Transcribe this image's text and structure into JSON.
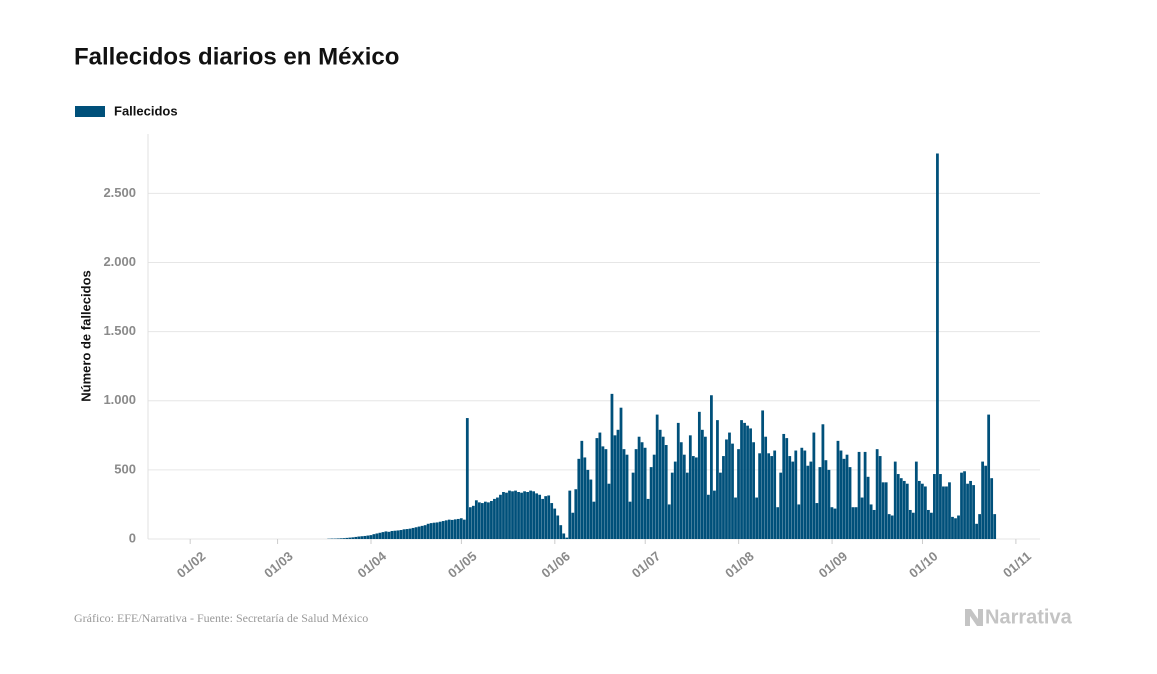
{
  "chart_data": {
    "type": "bar",
    "title": "Fallecidos diarios en México",
    "ylabel": "Número de fallecidos",
    "source": "Gráfico: EFE/Narrativa - Fuente: Secretaría de Salud México",
    "brand": "Narrativa",
    "legend": "top-left",
    "grid": true,
    "xlim": [
      18,
      314
    ],
    "xticks": [
      {
        "value": 32,
        "label": "01/02"
      },
      {
        "value": 61,
        "label": "01/03"
      },
      {
        "value": 92,
        "label": "01/04"
      },
      {
        "value": 122,
        "label": "01/05"
      },
      {
        "value": 153,
        "label": "01/06"
      },
      {
        "value": 183,
        "label": "01/07"
      },
      {
        "value": 214,
        "label": "01/08"
      },
      {
        "value": 245,
        "label": "01/09"
      },
      {
        "value": 275,
        "label": "01/10"
      },
      {
        "value": 306,
        "label": "01/11"
      }
    ],
    "ylim": [
      0,
      2930
    ],
    "yticks": [
      0,
      500,
      {
        "value": 1000,
        "label": "1.000"
      },
      {
        "value": 1500,
        "label": "1.500"
      },
      {
        "value": 2000,
        "label": "2.000"
      },
      {
        "value": 2500,
        "label": "2.500"
      }
    ],
    "x": [
      78,
      79,
      80,
      81,
      82,
      83,
      84,
      85,
      86,
      87,
      88,
      89,
      90,
      91,
      92,
      93,
      94,
      95,
      96,
      97,
      98,
      99,
      100,
      101,
      102,
      103,
      104,
      105,
      106,
      107,
      108,
      109,
      110,
      111,
      112,
      113,
      114,
      115,
      116,
      117,
      118,
      119,
      120,
      121,
      122,
      123,
      124,
      125,
      126,
      127,
      128,
      129,
      130,
      131,
      132,
      133,
      134,
      135,
      136,
      137,
      138,
      139,
      140,
      141,
      142,
      143,
      144,
      145,
      146,
      147,
      148,
      149,
      150,
      151,
      152,
      153,
      154,
      155,
      156,
      157,
      158,
      159,
      160,
      161,
      162,
      163,
      164,
      165,
      166,
      167,
      168,
      169,
      170,
      171,
      172,
      173,
      174,
      175,
      176,
      177,
      178,
      179,
      180,
      181,
      182,
      183,
      184,
      185,
      186,
      187,
      188,
      189,
      190,
      191,
      192,
      193,
      194,
      195,
      196,
      197,
      198,
      199,
      200,
      201,
      202,
      203,
      204,
      205,
      206,
      207,
      208,
      209,
      210,
      211,
      212,
      213,
      214,
      215,
      216,
      217,
      218,
      219,
      220,
      221,
      222,
      223,
      224,
      225,
      226,
      227,
      228,
      229,
      230,
      231,
      232,
      233,
      234,
      235,
      236,
      237,
      238,
      239,
      240,
      241,
      242,
      243,
      244,
      245,
      246,
      247,
      248,
      249,
      250,
      251,
      252,
      253,
      254,
      255,
      256,
      257,
      258,
      259,
      260,
      261,
      262,
      263,
      264,
      265,
      266,
      267,
      268,
      269,
      270,
      271,
      272,
      273,
      274,
      275,
      276,
      277,
      278,
      279,
      280,
      281,
      282,
      283,
      284,
      285,
      286,
      287,
      288,
      289,
      290,
      291,
      292,
      293,
      294,
      295,
      296,
      297,
      298,
      299
    ],
    "series": [
      {
        "name": "Fallecidos",
        "color": "#00507a",
        "values": [
          2,
          3,
          3,
          4,
          5,
          6,
          8,
          10,
          12,
          15,
          18,
          20,
          22,
          25,
          28,
          35,
          40,
          45,
          50,
          55,
          52,
          58,
          60,
          62,
          65,
          70,
          72,
          75,
          80,
          85,
          90,
          95,
          100,
          110,
          115,
          118,
          120,
          125,
          130,
          135,
          140,
          138,
          142,
          145,
          150,
          140,
          875,
          230,
          240,
          280,
          265,
          260,
          270,
          265,
          275,
          290,
          300,
          320,
          340,
          335,
          350,
          345,
          350,
          340,
          335,
          345,
          340,
          350,
          345,
          330,
          320,
          290,
          310,
          315,
          260,
          220,
          170,
          100,
          40,
          10,
          350,
          190,
          360,
          580,
          710,
          590,
          500,
          430,
          270,
          730,
          770,
          670,
          650,
          400,
          1050,
          750,
          790,
          950,
          650,
          610,
          270,
          480,
          650,
          740,
          700,
          660,
          290,
          520,
          610,
          900,
          790,
          740,
          680,
          250,
          480,
          560,
          840,
          700,
          610,
          480,
          750,
          600,
          590,
          920,
          790,
          740,
          320,
          1040,
          350,
          860,
          480,
          600,
          720,
          770,
          690,
          300,
          650,
          860,
          840,
          820,
          800,
          700,
          300,
          620,
          930,
          740,
          620,
          600,
          640,
          230,
          480,
          760,
          730,
          600,
          560,
          640,
          250,
          660,
          640,
          530,
          560,
          770,
          260,
          520,
          830,
          570,
          500,
          230,
          220,
          710,
          640,
          580,
          610,
          520,
          230,
          230,
          630,
          300,
          630,
          450,
          250,
          210,
          650,
          600,
          410,
          410,
          180,
          170,
          560,
          470,
          440,
          420,
          400,
          210,
          190,
          560,
          420,
          400,
          380,
          210,
          190,
          470,
          2789,
          470,
          380,
          380,
          410,
          160,
          150,
          170,
          480,
          490,
          400,
          420,
          390,
          110,
          180,
          560,
          530,
          900,
          440,
          180
        ]
      }
    ]
  }
}
